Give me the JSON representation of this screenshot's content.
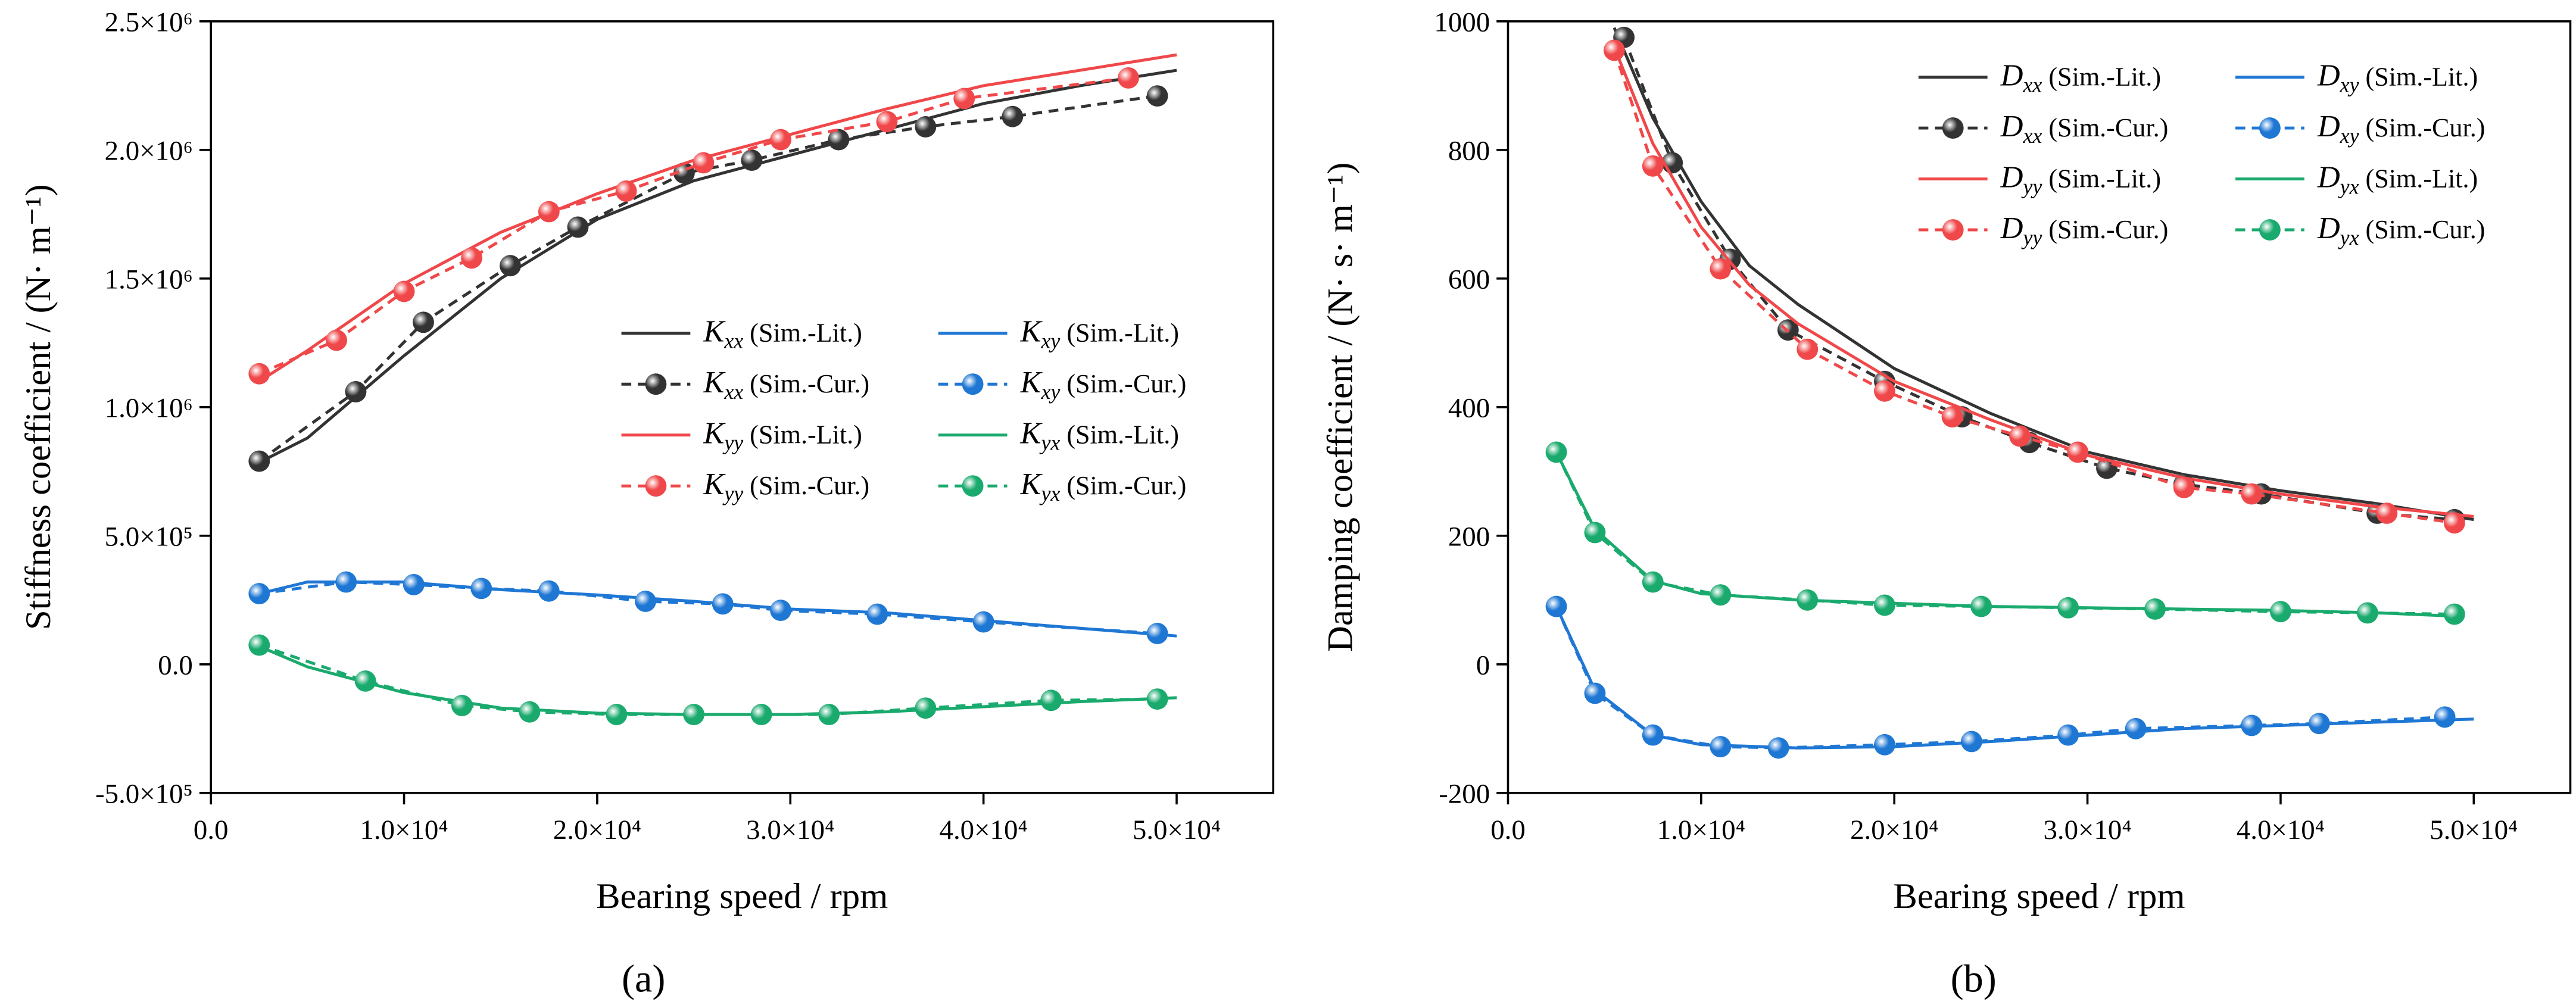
{
  "chart_data": [
    {
      "type": "line",
      "label": "(a)",
      "x_label": "Bearing speed / rpm",
      "y_label": "Stiffness coefficient / (N· m⁻¹)",
      "xlim": [
        0,
        55000
      ],
      "xticks": [
        {
          "value": 0,
          "label": "0.0"
        },
        {
          "value": 10000,
          "label": "1.0×10⁴"
        },
        {
          "value": 20000,
          "label": "2.0×10⁴"
        },
        {
          "value": 30000,
          "label": "3.0×10⁴"
        },
        {
          "value": 40000,
          "label": "4.0×10⁴"
        },
        {
          "value": 50000,
          "label": "5.0×10⁴"
        }
      ],
      "ylim": [
        -500000,
        2500000
      ],
      "yticks": [
        {
          "value": -500000,
          "label": "-5.0×10⁵"
        },
        {
          "value": 0,
          "label": "0.0"
        },
        {
          "value": 500000,
          "label": "5.0×10⁵"
        },
        {
          "value": 1000000,
          "label": "1.0×10⁶"
        },
        {
          "value": 1500000,
          "label": "1.5×10⁶"
        },
        {
          "value": 2000000,
          "label": "2.0×10⁶"
        },
        {
          "value": 2500000,
          "label": "2.5×10⁶"
        }
      ],
      "legend": "center-right",
      "series": [
        {
          "name": "Kxx (Sim.-Lit.)",
          "color": "#333333",
          "dashed": false,
          "marker": false,
          "x": [
            2500,
            5000,
            10000,
            15000,
            20000,
            25000,
            30000,
            35000,
            40000,
            45000,
            50000
          ],
          "values": [
            785000,
            880000,
            1200000,
            1500000,
            1730000,
            1880000,
            1980000,
            2080000,
            2180000,
            2250000,
            2310000
          ]
        },
        {
          "name": "Kxx (Sim.-Cur.)",
          "color": "#333333",
          "dashed": true,
          "marker": true,
          "x": [
            2500,
            7500,
            11000,
            15500,
            19000,
            24500,
            28000,
            32500,
            37000,
            41500,
            49000
          ],
          "values": [
            790000,
            1060000,
            1330000,
            1550000,
            1700000,
            1910000,
            1960000,
            2040000,
            2090000,
            2130000,
            2210000
          ]
        },
        {
          "name": "Kyy (Sim.-Lit.)",
          "color": "#f0484a",
          "dashed": false,
          "marker": false,
          "x": [
            2500,
            5000,
            10000,
            15000,
            20000,
            25000,
            30000,
            35000,
            40000,
            45000,
            50000
          ],
          "values": [
            1100000,
            1220000,
            1480000,
            1680000,
            1830000,
            1960000,
            2060000,
            2160000,
            2250000,
            2310000,
            2370000
          ]
        },
        {
          "name": "Kyy (Sim.-Cur.)",
          "color": "#f0484a",
          "dashed": true,
          "marker": true,
          "x": [
            2500,
            6500,
            10000,
            13500,
            17500,
            21500,
            25500,
            29500,
            35000,
            39000,
            47500
          ],
          "values": [
            1130000,
            1260000,
            1450000,
            1580000,
            1760000,
            1840000,
            1950000,
            2040000,
            2110000,
            2200000,
            2280000
          ]
        },
        {
          "name": "Kxy (Sim.-Lit.)",
          "color": "#1f77d4",
          "dashed": false,
          "marker": false,
          "x": [
            2500,
            5000,
            10000,
            15000,
            20000,
            25000,
            30000,
            35000,
            40000,
            45000,
            50000
          ],
          "values": [
            275000,
            320000,
            320000,
            290000,
            270000,
            245000,
            215000,
            200000,
            170000,
            140000,
            110000
          ]
        },
        {
          "name": "Kxy (Sim.-Cur.)",
          "color": "#1f77d4",
          "dashed": true,
          "marker": true,
          "x": [
            2500,
            7000,
            10500,
            14000,
            17500,
            22500,
            26500,
            29500,
            34500,
            40000,
            49000
          ],
          "values": [
            275000,
            320000,
            310000,
            295000,
            285000,
            245000,
            235000,
            210000,
            195000,
            165000,
            120000
          ]
        },
        {
          "name": "Kyx (Sim.-Lit.)",
          "color": "#1aaa6e",
          "dashed": false,
          "marker": false,
          "x": [
            2500,
            5000,
            10000,
            15000,
            20000,
            25000,
            30000,
            35000,
            40000,
            45000,
            50000
          ],
          "values": [
            70000,
            -10000,
            -110000,
            -170000,
            -190000,
            -195000,
            -195000,
            -185000,
            -165000,
            -145000,
            -130000
          ]
        },
        {
          "name": "Kyx (Sim.-Cur.)",
          "color": "#1aaa6e",
          "dashed": true,
          "marker": true,
          "x": [
            2500,
            8000,
            13000,
            16500,
            21000,
            25000,
            28500,
            32000,
            37000,
            43500,
            49000
          ],
          "values": [
            75000,
            -65000,
            -160000,
            -185000,
            -195000,
            -195000,
            -195000,
            -195000,
            -170000,
            -140000,
            -135000
          ]
        }
      ]
    },
    {
      "type": "line",
      "label": "(b)",
      "x_label": "Bearing speed / rpm",
      "y_label": "Damping coefficient / (N· s· m⁻¹)",
      "xlim": [
        0,
        55000
      ],
      "xticks": [
        {
          "value": 0,
          "label": "0.0"
        },
        {
          "value": 10000,
          "label": "1.0×10⁴"
        },
        {
          "value": 20000,
          "label": "2.0×10⁴"
        },
        {
          "value": 30000,
          "label": "3.0×10⁴"
        },
        {
          "value": 40000,
          "label": "4.0×10⁴"
        },
        {
          "value": 50000,
          "label": "5.0×10⁴"
        }
      ],
      "ylim": [
        -200,
        1000
      ],
      "yticks": [
        -200,
        0,
        200,
        400,
        600,
        800,
        1000
      ],
      "legend": "upper-right",
      "series": [
        {
          "name": "Dxx (Sim.-Lit.)",
          "color": "#333333",
          "dashed": false,
          "marker": false,
          "x": [
            5500,
            7500,
            10000,
            12500,
            15000,
            20000,
            25000,
            30000,
            35000,
            40000,
            45000,
            50000
          ],
          "values": [
            990,
            850,
            720,
            620,
            560,
            460,
            390,
            330,
            295,
            270,
            250,
            225
          ]
        },
        {
          "name": "Dxx (Sim.-Cur.)",
          "color": "#333333",
          "dashed": true,
          "marker": true,
          "x": [
            6000,
            8500,
            11500,
            14500,
            19500,
            23500,
            27000,
            31000,
            35000,
            39000,
            45000,
            49000
          ],
          "values": [
            975,
            780,
            630,
            520,
            440,
            385,
            345,
            305,
            280,
            265,
            235,
            225
          ]
        },
        {
          "name": "Dyy (Sim.-Lit.)",
          "color": "#f0484a",
          "dashed": false,
          "marker": false,
          "x": [
            5500,
            7500,
            10000,
            12500,
            15000,
            20000,
            25000,
            30000,
            35000,
            40000,
            45000,
            50000
          ],
          "values": [
            960,
            810,
            680,
            590,
            530,
            440,
            380,
            325,
            290,
            265,
            245,
            230
          ]
        },
        {
          "name": "Dyy (Sim.-Cur.)",
          "color": "#f0484a",
          "dashed": true,
          "marker": true,
          "x": [
            5500,
            7500,
            11000,
            15500,
            19500,
            23000,
            26500,
            29500,
            35000,
            38500,
            45500,
            49000
          ],
          "values": [
            955,
            775,
            615,
            490,
            425,
            385,
            355,
            330,
            275,
            265,
            235,
            220
          ]
        },
        {
          "name": "Dxy (Sim.-Lit.)",
          "color": "#1f77d4",
          "dashed": false,
          "marker": false,
          "x": [
            2500,
            4500,
            7500,
            10000,
            15000,
            20000,
            25000,
            30000,
            35000,
            40000,
            45000,
            50000
          ],
          "values": [
            90,
            -40,
            -110,
            -125,
            -130,
            -128,
            -120,
            -110,
            -100,
            -95,
            -90,
            -85
          ]
        },
        {
          "name": "Dxy (Sim.-Cur.)",
          "color": "#1f77d4",
          "dashed": true,
          "marker": true,
          "x": [
            2500,
            4500,
            7500,
            11000,
            14000,
            19500,
            24000,
            29000,
            32500,
            38500,
            42000,
            48500
          ],
          "values": [
            90,
            -45,
            -110,
            -128,
            -130,
            -125,
            -120,
            -110,
            -100,
            -95,
            -92,
            -82
          ]
        },
        {
          "name": "Dyx (Sim.-Lit.)",
          "color": "#1aaa6e",
          "dashed": false,
          "marker": false,
          "x": [
            2500,
            4500,
            7500,
            10000,
            15000,
            20000,
            25000,
            30000,
            35000,
            40000,
            45000,
            49000
          ],
          "values": [
            330,
            210,
            130,
            110,
            100,
            95,
            90,
            88,
            86,
            84,
            80,
            75
          ]
        },
        {
          "name": "Dyx (Sim.-Cur.)",
          "color": "#1aaa6e",
          "dashed": true,
          "marker": true,
          "x": [
            2500,
            4500,
            7500,
            11000,
            15500,
            19500,
            24500,
            29000,
            33500,
            40000,
            44500,
            49000
          ],
          "values": [
            330,
            205,
            128,
            108,
            100,
            92,
            90,
            88,
            86,
            82,
            80,
            78
          ]
        }
      ]
    }
  ]
}
